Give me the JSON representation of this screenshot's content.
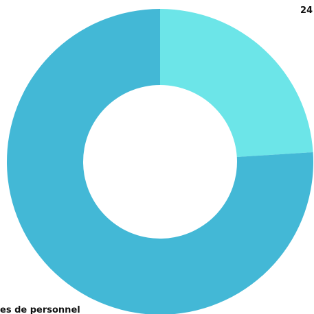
{
  "chart_data": {
    "type": "donut",
    "categories": [
      null,
      "es de personnel"
    ],
    "values": [
      24,
      76
    ],
    "value_labels": [
      "24",
      null
    ],
    "colors": [
      "#6ce5e8",
      "#43b8d6"
    ]
  }
}
